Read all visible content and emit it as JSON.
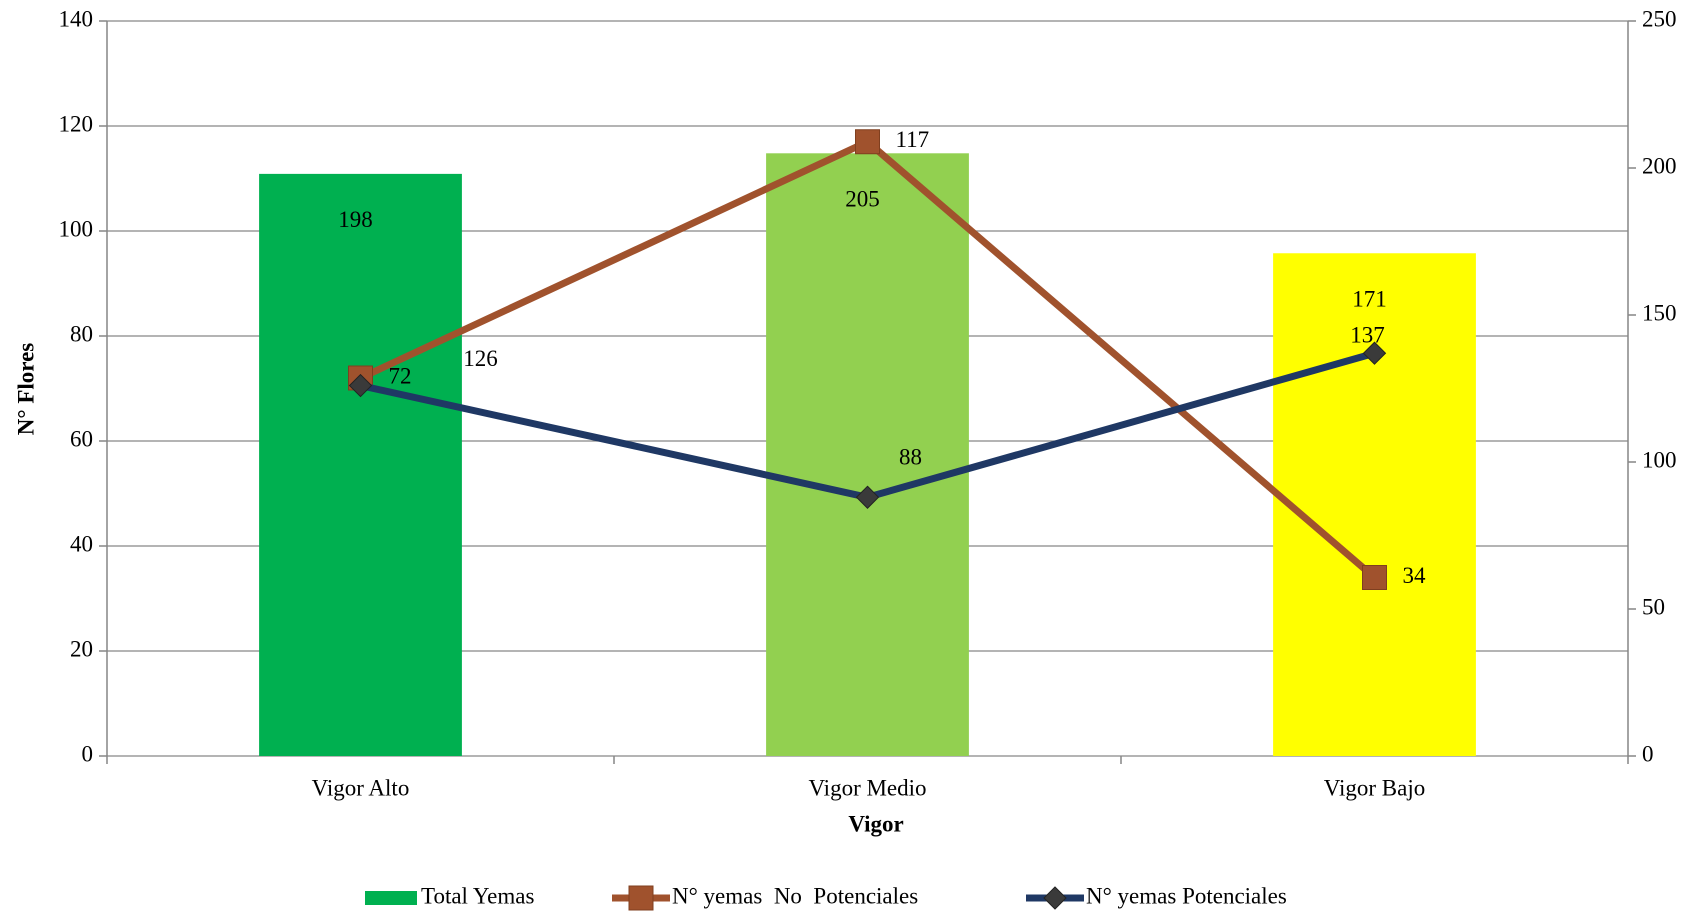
{
  "chart_data": {
    "type": "bar",
    "x_label": "Vigor",
    "y_label": "N° Flores",
    "categories": [
      "Vigor Alto",
      "Vigor Medio",
      "Vigor Bajo"
    ],
    "series": [
      {
        "name": "Total Yemas",
        "type": "bar",
        "axis": "y2",
        "colors": [
          "#00b050",
          "#92d050",
          "#ffff00"
        ],
        "values": [
          198,
          205,
          171
        ]
      },
      {
        "name": "N° yemas  No  Potenciales",
        "type": "line",
        "color": "#a0522d",
        "marker": "square",
        "values": [
          72,
          117,
          34
        ]
      },
      {
        "name": "N° yemas Potenciales",
        "type": "line",
        "axis": "y2",
        "color": "#1f3864",
        "marker": "diamond",
        "values": [
          126,
          88,
          137
        ]
      }
    ],
    "ylim": [
      0,
      140
    ],
    "yticks": [
      0,
      20,
      40,
      60,
      80,
      100,
      120,
      140
    ],
    "y2lim": [
      0,
      250
    ],
    "y2ticks": [
      0,
      50,
      100,
      150,
      200,
      250
    ],
    "grid": true,
    "legend": "bottom"
  }
}
